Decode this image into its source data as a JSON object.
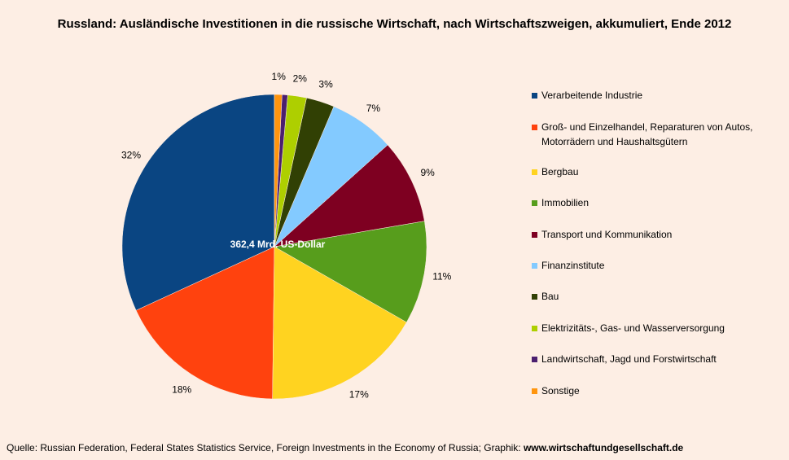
{
  "chart_data": {
    "type": "pie",
    "title": "Russland: Ausländische Investitionen in die russische Wirtschaft, nach Wirtschaftszweigen, akkumuliert, Ende 2012",
    "center_label": "362,4 Mrd. US-Dollar",
    "slices": [
      {
        "name": "Verarbeitende Industrie",
        "value": 32,
        "label": "32%",
        "color": "#0a4582"
      },
      {
        "name": "Groß- und Einzelhandel, Reparaturen von Autos, Motorrädern und Haushaltsgütern",
        "value": 18,
        "label": "18%",
        "color": "#ff420e"
      },
      {
        "name": "Bergbau",
        "value": 17,
        "label": "17%",
        "color": "#ffd320"
      },
      {
        "name": "Immobilien",
        "value": 11,
        "label": "11%",
        "color": "#579d1c"
      },
      {
        "name": "Transport und Kommunikation",
        "value": 9,
        "label": "9%",
        "color": "#7e0021"
      },
      {
        "name": "Finanzinstitute",
        "value": 7,
        "label": "7%",
        "color": "#83caff"
      },
      {
        "name": "Bau",
        "value": 3,
        "label": "3%",
        "color": "#314004"
      },
      {
        "name": "Elektrizitäts-, Gas- und Wasserversorgung",
        "value": 2,
        "label": "2%",
        "color": "#aecf00"
      },
      {
        "name": "Landwirtschaft, Jagd und Forstwirtschaft",
        "value": 0.6,
        "label": "",
        "color": "#4b1f6f"
      },
      {
        "name": "Sonstige",
        "value": 0.8,
        "label": "1%",
        "color": "#ff950e"
      }
    ],
    "legend_position": "right"
  },
  "source": {
    "text": "Quelle: Russian Federation, Federal States Statistics Service, Foreign Investments in the Economy of Russia; Graphik: ",
    "site": "www.wirtschaftundgesellschaft.de"
  }
}
